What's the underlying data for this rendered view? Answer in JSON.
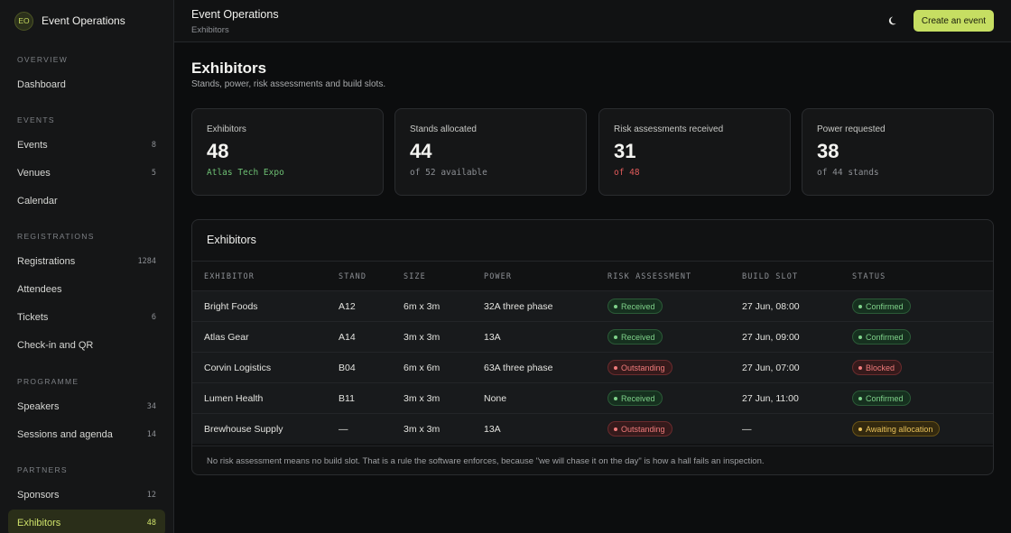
{
  "brand": {
    "initials": "EO",
    "name": "Event Operations"
  },
  "sidebar": {
    "sections": [
      {
        "label": "OVERVIEW",
        "items": [
          {
            "label": "Dashboard",
            "count": ""
          }
        ]
      },
      {
        "label": "EVENTS",
        "items": [
          {
            "label": "Events",
            "count": "8"
          },
          {
            "label": "Venues",
            "count": "5"
          },
          {
            "label": "Calendar",
            "count": ""
          }
        ]
      },
      {
        "label": "REGISTRATIONS",
        "items": [
          {
            "label": "Registrations",
            "count": "1284"
          },
          {
            "label": "Attendees",
            "count": ""
          },
          {
            "label": "Tickets",
            "count": "6"
          },
          {
            "label": "Check-in and QR",
            "count": ""
          }
        ]
      },
      {
        "label": "PROGRAMME",
        "items": [
          {
            "label": "Speakers",
            "count": "34"
          },
          {
            "label": "Sessions and agenda",
            "count": "14"
          }
        ]
      },
      {
        "label": "PARTNERS",
        "items": [
          {
            "label": "Sponsors",
            "count": "12"
          },
          {
            "label": "Exhibitors",
            "count": "48",
            "active": true
          }
        ]
      }
    ]
  },
  "header": {
    "title": "Event Operations",
    "breadcrumb": "Exhibitors",
    "theme_icon": "moon-icon",
    "create_label": "Create an event"
  },
  "page": {
    "title": "Exhibitors",
    "subtitle": "Stands, power, risk assessments and build slots."
  },
  "stats": [
    {
      "label": "Exhibitors",
      "value": "48",
      "note": "Atlas Tech Expo",
      "tone": "green"
    },
    {
      "label": "Stands allocated",
      "value": "44",
      "note": "of 52 available",
      "tone": "muted"
    },
    {
      "label": "Risk assessments received",
      "value": "31",
      "note": "of 48",
      "tone": "red"
    },
    {
      "label": "Power requested",
      "value": "38",
      "note": "of 44 stands",
      "tone": "muted"
    }
  ],
  "table": {
    "title": "Exhibitors",
    "columns": [
      "EXHIBITOR",
      "STAND",
      "SIZE",
      "POWER",
      "RISK ASSESSMENT",
      "BUILD SLOT",
      "STATUS"
    ],
    "rows": [
      {
        "exhibitor": "Bright Foods",
        "stand": "A12",
        "size": "6m x 3m",
        "power": "32A three phase",
        "risk": "Received",
        "risk_tone": "green",
        "slot": "27 Jun, 08:00",
        "status": "Confirmed",
        "status_tone": "green"
      },
      {
        "exhibitor": "Atlas Gear",
        "stand": "A14",
        "size": "3m x 3m",
        "power": "13A",
        "risk": "Received",
        "risk_tone": "green",
        "slot": "27 Jun, 09:00",
        "status": "Confirmed",
        "status_tone": "green"
      },
      {
        "exhibitor": "Corvin Logistics",
        "stand": "B04",
        "size": "6m x 6m",
        "power": "63A three phase",
        "risk": "Outstanding",
        "risk_tone": "red",
        "slot": "27 Jun, 07:00",
        "status": "Blocked",
        "status_tone": "red"
      },
      {
        "exhibitor": "Lumen Health",
        "stand": "B11",
        "size": "3m x 3m",
        "power": "None",
        "risk": "Received",
        "risk_tone": "green",
        "slot": "27 Jun, 11:00",
        "status": "Confirmed",
        "status_tone": "green"
      },
      {
        "exhibitor": "Brewhouse Supply",
        "stand": "—",
        "size": "3m x 3m",
        "power": "13A",
        "risk": "Outstanding",
        "risk_tone": "red",
        "slot": "—",
        "status": "Awaiting allocation",
        "status_tone": "amber"
      }
    ],
    "footnote": "No risk assessment means no build slot. That is a rule the software enforces, because \"we will chase it on the day\" is how a hall fails an inspection."
  }
}
